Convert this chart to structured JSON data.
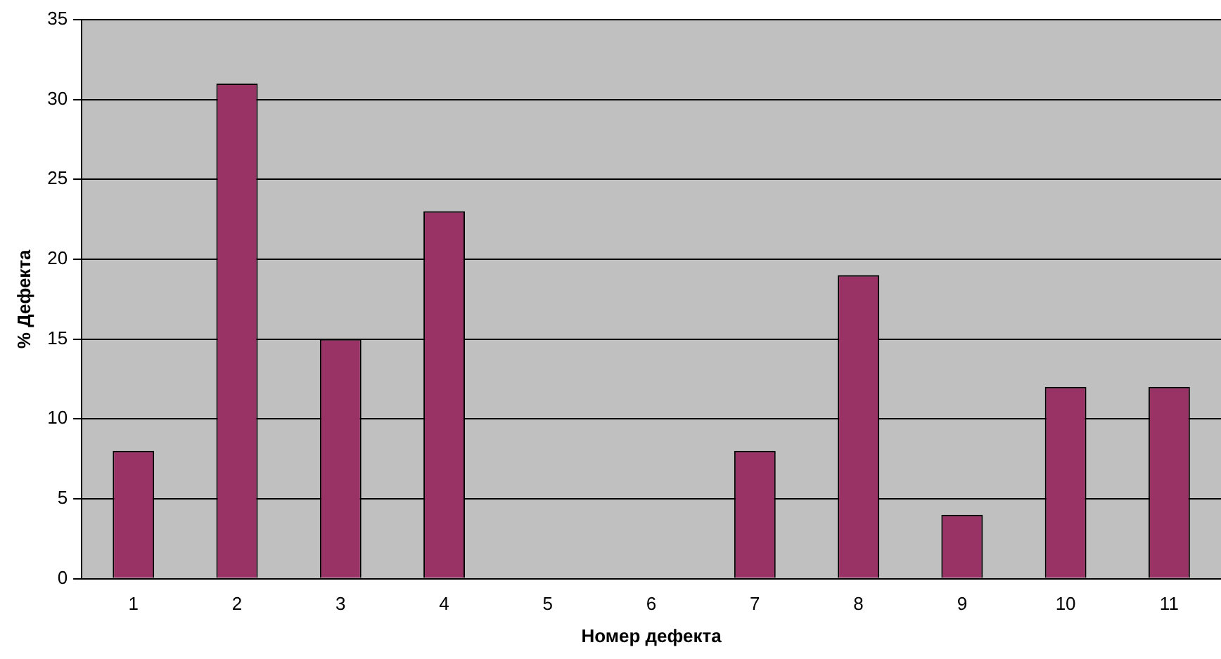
{
  "chart_data": {
    "type": "bar",
    "xlabel": "Номер дефекта",
    "ylabel": "% Дефекта",
    "categories": [
      "1",
      "2",
      "3",
      "4",
      "5",
      "6",
      "7",
      "8",
      "9",
      "10",
      "11"
    ],
    "values": [
      8,
      31,
      15,
      23,
      0,
      0,
      8,
      19,
      4,
      12,
      12
    ],
    "color": "#993366",
    "ylim": [
      0,
      35
    ],
    "yticks": [
      0,
      5,
      10,
      15,
      20,
      25,
      30,
      35
    ],
    "grid": "y"
  }
}
